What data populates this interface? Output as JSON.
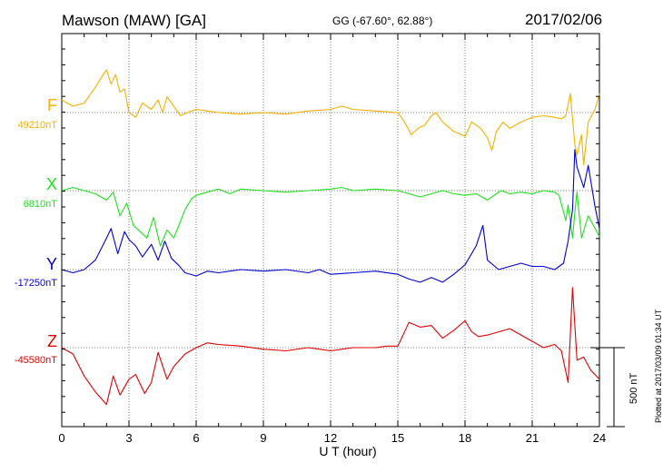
{
  "header": {
    "title": "Mawson (MAW)  [GA]",
    "coords": "GG (-67.60°,  62.88°)",
    "date": "2017/02/06"
  },
  "credit": "Plotted at 2017/03/09 01:34 UT",
  "chart_data": {
    "type": "line",
    "xlabel": "U T (hour)",
    "xlim": [
      0,
      24
    ],
    "xticks": [
      "0",
      "3",
      "6",
      "9",
      "12",
      "15",
      "18",
      "21",
      "24"
    ],
    "scale_bar": {
      "value_nT": 500,
      "label": "500 nT"
    },
    "colors": {
      "F": "#f5b000",
      "X": "#1ee01e",
      "Y": "#0000d0",
      "Z": "#e00000"
    },
    "series": [
      {
        "name": "F",
        "baseline_label": "49210nT",
        "baseline_nT": 49210,
        "points": [
          [
            0,
            80
          ],
          [
            0.5,
            40
          ],
          [
            1,
            60
          ],
          [
            1.5,
            160
          ],
          [
            1.8,
            230
          ],
          [
            2,
            270
          ],
          [
            2.2,
            180
          ],
          [
            2.4,
            240
          ],
          [
            2.6,
            130
          ],
          [
            2.8,
            150
          ],
          [
            3,
            0
          ],
          [
            3.3,
            -30
          ],
          [
            3.6,
            60
          ],
          [
            4,
            20
          ],
          [
            4.3,
            80
          ],
          [
            4.5,
            0
          ],
          [
            4.7,
            100
          ],
          [
            5,
            40
          ],
          [
            5.3,
            -20
          ],
          [
            5.6,
            0
          ],
          [
            6,
            20
          ],
          [
            6.5,
            10
          ],
          [
            7,
            0
          ],
          [
            8,
            -10
          ],
          [
            9,
            0
          ],
          [
            10,
            -10
          ],
          [
            11,
            10
          ],
          [
            12,
            20
          ],
          [
            12.5,
            40
          ],
          [
            13,
            20
          ],
          [
            14,
            10
          ],
          [
            15,
            0
          ],
          [
            15.3,
            -60
          ],
          [
            15.6,
            -140
          ],
          [
            15.9,
            -100
          ],
          [
            16.2,
            -80
          ],
          [
            16.5,
            -20
          ],
          [
            16.7,
            0
          ],
          [
            17,
            -60
          ],
          [
            17.5,
            -120
          ],
          [
            18,
            -150
          ],
          [
            18.3,
            -60
          ],
          [
            18.7,
            -100
          ],
          [
            19,
            -160
          ],
          [
            19.2,
            -240
          ],
          [
            19.4,
            -120
          ],
          [
            19.7,
            -60
          ],
          [
            20,
            -100
          ],
          [
            20.5,
            -60
          ],
          [
            21,
            -30
          ],
          [
            21.5,
            -20
          ],
          [
            22,
            -30
          ],
          [
            22.3,
            -40
          ],
          [
            22.5,
            -20
          ],
          [
            22.7,
            120
          ],
          [
            22.9,
            -200
          ],
          [
            23,
            -270
          ],
          [
            23.2,
            -140
          ],
          [
            23.3,
            -330
          ],
          [
            23.5,
            -60
          ],
          [
            23.8,
            20
          ],
          [
            24,
            120
          ]
        ]
      },
      {
        "name": "X",
        "baseline_label": "6810nT",
        "baseline_nT": 6810,
        "points": [
          [
            0,
            0
          ],
          [
            0.5,
            20
          ],
          [
            1,
            0
          ],
          [
            1.5,
            -20
          ],
          [
            2,
            -60
          ],
          [
            2.3,
            -10
          ],
          [
            2.6,
            -160
          ],
          [
            2.9,
            -80
          ],
          [
            3.2,
            -220
          ],
          [
            3.5,
            -260
          ],
          [
            3.8,
            -300
          ],
          [
            4.1,
            -170
          ],
          [
            4.4,
            -350
          ],
          [
            4.7,
            -250
          ],
          [
            5,
            -300
          ],
          [
            5.2,
            -230
          ],
          [
            5.5,
            -120
          ],
          [
            5.8,
            -50
          ],
          [
            6,
            -30
          ],
          [
            6.5,
            -10
          ],
          [
            7,
            10
          ],
          [
            7.5,
            -20
          ],
          [
            8,
            10
          ],
          [
            9,
            0
          ],
          [
            10,
            -10
          ],
          [
            11,
            0
          ],
          [
            12,
            10
          ],
          [
            12.5,
            20
          ],
          [
            13,
            0
          ],
          [
            14,
            10
          ],
          [
            15,
            0
          ],
          [
            15.5,
            -20
          ],
          [
            16,
            -40
          ],
          [
            16.5,
            -20
          ],
          [
            17,
            0
          ],
          [
            17.5,
            -20
          ],
          [
            18,
            -30
          ],
          [
            18.5,
            -20
          ],
          [
            19,
            -60
          ],
          [
            19.3,
            -30
          ],
          [
            19.6,
            0
          ],
          [
            20,
            -20
          ],
          [
            20.5,
            -10
          ],
          [
            21,
            -20
          ],
          [
            21.5,
            0
          ],
          [
            22,
            -10
          ],
          [
            22.2,
            -30
          ],
          [
            22.5,
            -190
          ],
          [
            22.6,
            -90
          ],
          [
            22.8,
            -300
          ],
          [
            22.9,
            -140
          ],
          [
            23,
            -10
          ],
          [
            23.2,
            -300
          ],
          [
            23.5,
            -160
          ],
          [
            24,
            -290
          ]
        ]
      },
      {
        "name": "Y",
        "baseline_label": "-17250nT",
        "baseline_nT": -17250,
        "points": [
          [
            0,
            0
          ],
          [
            0.5,
            -20
          ],
          [
            1,
            0
          ],
          [
            1.5,
            60
          ],
          [
            2,
            200
          ],
          [
            2.2,
            260
          ],
          [
            2.5,
            100
          ],
          [
            2.8,
            240
          ],
          [
            3,
            190
          ],
          [
            3.3,
            150
          ],
          [
            3.6,
            80
          ],
          [
            4,
            160
          ],
          [
            4.3,
            60
          ],
          [
            4.6,
            180
          ],
          [
            4.9,
            70
          ],
          [
            5.2,
            30
          ],
          [
            5.5,
            -20
          ],
          [
            6,
            -40
          ],
          [
            6.5,
            -10
          ],
          [
            7,
            -20
          ],
          [
            8,
            0
          ],
          [
            9,
            -10
          ],
          [
            10,
            0
          ],
          [
            11,
            -20
          ],
          [
            11.5,
            0
          ],
          [
            12,
            -30
          ],
          [
            13,
            -20
          ],
          [
            14,
            -10
          ],
          [
            15,
            -30
          ],
          [
            15.5,
            -60
          ],
          [
            16,
            -80
          ],
          [
            16.5,
            -50
          ],
          [
            17,
            -80
          ],
          [
            17.5,
            -30
          ],
          [
            18,
            30
          ],
          [
            18.5,
            150
          ],
          [
            18.8,
            280
          ],
          [
            19,
            60
          ],
          [
            19.5,
            0
          ],
          [
            20,
            20
          ],
          [
            20.5,
            40
          ],
          [
            21,
            20
          ],
          [
            21.5,
            20
          ],
          [
            22,
            0
          ],
          [
            22.4,
            40
          ],
          [
            22.6,
            180
          ],
          [
            22.8,
            380
          ],
          [
            22.9,
            760
          ],
          [
            23,
            650
          ],
          [
            23.3,
            520
          ],
          [
            23.5,
            660
          ],
          [
            23.8,
            400
          ],
          [
            24,
            260
          ]
        ]
      },
      {
        "name": "Z",
        "baseline_label": "-45580nT",
        "baseline_nT": -45580,
        "points": [
          [
            0,
            0
          ],
          [
            0.5,
            -40
          ],
          [
            1,
            -180
          ],
          [
            1.5,
            -280
          ],
          [
            2,
            -360
          ],
          [
            2.3,
            -180
          ],
          [
            2.6,
            -300
          ],
          [
            3,
            -200
          ],
          [
            3.3,
            -170
          ],
          [
            3.7,
            -290
          ],
          [
            4,
            -220
          ],
          [
            4.3,
            -30
          ],
          [
            4.7,
            -200
          ],
          [
            5,
            -120
          ],
          [
            5.5,
            -40
          ],
          [
            6,
            0
          ],
          [
            6.5,
            30
          ],
          [
            7,
            20
          ],
          [
            8,
            10
          ],
          [
            9,
            -10
          ],
          [
            10,
            -20
          ],
          [
            11,
            0
          ],
          [
            11.5,
            -10
          ],
          [
            12,
            -20
          ],
          [
            13,
            0
          ],
          [
            14,
            0
          ],
          [
            14.5,
            10
          ],
          [
            15,
            10
          ],
          [
            15.5,
            160
          ],
          [
            16,
            130
          ],
          [
            16.5,
            140
          ],
          [
            17,
            60
          ],
          [
            17.5,
            110
          ],
          [
            18,
            170
          ],
          [
            18.3,
            100
          ],
          [
            18.6,
            70
          ],
          [
            19,
            80
          ],
          [
            19.5,
            100
          ],
          [
            20,
            120
          ],
          [
            20.5,
            80
          ],
          [
            21,
            40
          ],
          [
            21.5,
            0
          ],
          [
            22,
            20
          ],
          [
            22.3,
            -20
          ],
          [
            22.6,
            -220
          ],
          [
            22.8,
            380
          ],
          [
            23,
            -80
          ],
          [
            23.3,
            -60
          ],
          [
            23.6,
            -140
          ],
          [
            24,
            -200
          ]
        ]
      }
    ]
  }
}
